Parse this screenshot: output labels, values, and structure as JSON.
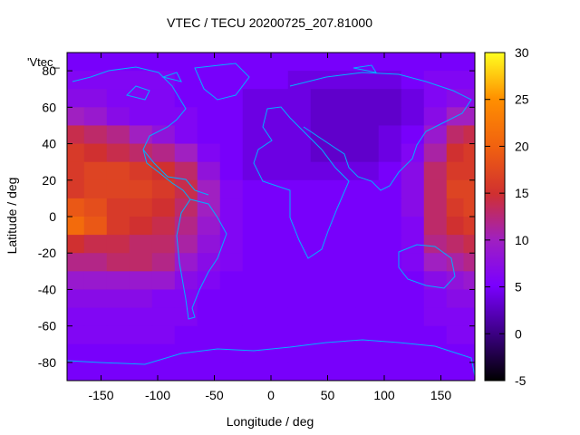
{
  "chart_data": {
    "type": "heatmap",
    "title": "VTEC / TECU 20200725_207.81000",
    "xlabel": "Longitude / deg",
    "ylabel": "Latitude / deg",
    "key_label": "'Vtec_",
    "xlim": [
      -180,
      180
    ],
    "ylim": [
      -90,
      90
    ],
    "xticks": [
      -150,
      -100,
      -50,
      0,
      50,
      100,
      150
    ],
    "yticks": [
      -80,
      -60,
      -40,
      -20,
      0,
      20,
      40,
      60,
      80
    ],
    "colorbar": {
      "min": -5,
      "max": 30,
      "ticks": [
        -5,
        0,
        5,
        10,
        15,
        20,
        25,
        30
      ]
    },
    "grid": false,
    "palette": [
      "#000000",
      "#4000a0",
      "#8000ff",
      "#c02060",
      "#ff6000",
      "#ffd000",
      "#ffff40"
    ],
    "coastline_color": "#00b0ff",
    "value_grid": {
      "lats": [
        85,
        75,
        65,
        55,
        45,
        35,
        25,
        15,
        5,
        -5,
        -15,
        -25,
        -35,
        -45,
        -55,
        -65,
        -75,
        -85
      ],
      "lons": [
        -175,
        -155,
        -135,
        -115,
        -95,
        -75,
        -55,
        -35,
        -15,
        5,
        25,
        45,
        65,
        85,
        105,
        125,
        145,
        165,
        175
      ],
      "values": [
        [
          5,
          5,
          5,
          5,
          5,
          5,
          5,
          5,
          5,
          5,
          5,
          5,
          5,
          5,
          5,
          5,
          5,
          5,
          5
        ],
        [
          6,
          6,
          6,
          6,
          6,
          5,
          5,
          5,
          5,
          5,
          4,
          4,
          4,
          4,
          4,
          5,
          6,
          6,
          6
        ],
        [
          7,
          7,
          6,
          6,
          6,
          5,
          5,
          5,
          4,
          4,
          4,
          3,
          3,
          3,
          3,
          4,
          6,
          7,
          7
        ],
        [
          10,
          9,
          7,
          6,
          6,
          6,
          5,
          5,
          4,
          4,
          4,
          3,
          3,
          3,
          3,
          4,
          7,
          10,
          10
        ],
        [
          14,
          13,
          12,
          10,
          8,
          6,
          5,
          5,
          4,
          4,
          4,
          3,
          3,
          3,
          4,
          5,
          9,
          13,
          14
        ],
        [
          16,
          15,
          14,
          13,
          12,
          10,
          6,
          5,
          4,
          4,
          4,
          3,
          3,
          3,
          4,
          6,
          11,
          15,
          16
        ],
        [
          16,
          17,
          17,
          16,
          15,
          13,
          8,
          5,
          4,
          4,
          4,
          4,
          4,
          4,
          5,
          7,
          13,
          16,
          16
        ],
        [
          16,
          17,
          17,
          17,
          16,
          14,
          10,
          6,
          5,
          5,
          5,
          5,
          5,
          5,
          5,
          7,
          13,
          17,
          17
        ],
        [
          19,
          18,
          16,
          16,
          15,
          13,
          10,
          6,
          5,
          5,
          5,
          5,
          5,
          5,
          5,
          7,
          13,
          16,
          17
        ],
        [
          21,
          19,
          16,
          15,
          14,
          12,
          9,
          6,
          5,
          5,
          5,
          5,
          5,
          5,
          5,
          6,
          13,
          15,
          16
        ],
        [
          15,
          14,
          14,
          13,
          13,
          11,
          8,
          6,
          5,
          5,
          5,
          5,
          5,
          5,
          5,
          6,
          12,
          13,
          14
        ],
        [
          12,
          12,
          13,
          13,
          12,
          9,
          7,
          6,
          5,
          5,
          5,
          5,
          5,
          5,
          5,
          6,
          10,
          11,
          12
        ],
        [
          9,
          9,
          9,
          9,
          9,
          7,
          6,
          5,
          5,
          5,
          5,
          5,
          5,
          5,
          5,
          5,
          7,
          8,
          9
        ],
        [
          7,
          7,
          7,
          7,
          6,
          6,
          5,
          5,
          5,
          5,
          5,
          5,
          5,
          5,
          5,
          5,
          6,
          7,
          7
        ],
        [
          6,
          6,
          6,
          6,
          6,
          6,
          5,
          5,
          5,
          5,
          5,
          5,
          5,
          5,
          5,
          5,
          6,
          6,
          6
        ],
        [
          6,
          6,
          6,
          6,
          6,
          5,
          5,
          5,
          5,
          5,
          5,
          5,
          5,
          5,
          5,
          5,
          5,
          6,
          6
        ],
        [
          5,
          5,
          5,
          5,
          5,
          5,
          5,
          5,
          5,
          5,
          5,
          5,
          5,
          5,
          5,
          5,
          5,
          5,
          5
        ],
        [
          5,
          5,
          5,
          5,
          5,
          5,
          5,
          5,
          5,
          5,
          5,
          5,
          5,
          5,
          5,
          5,
          5,
          5,
          5
        ]
      ]
    }
  }
}
